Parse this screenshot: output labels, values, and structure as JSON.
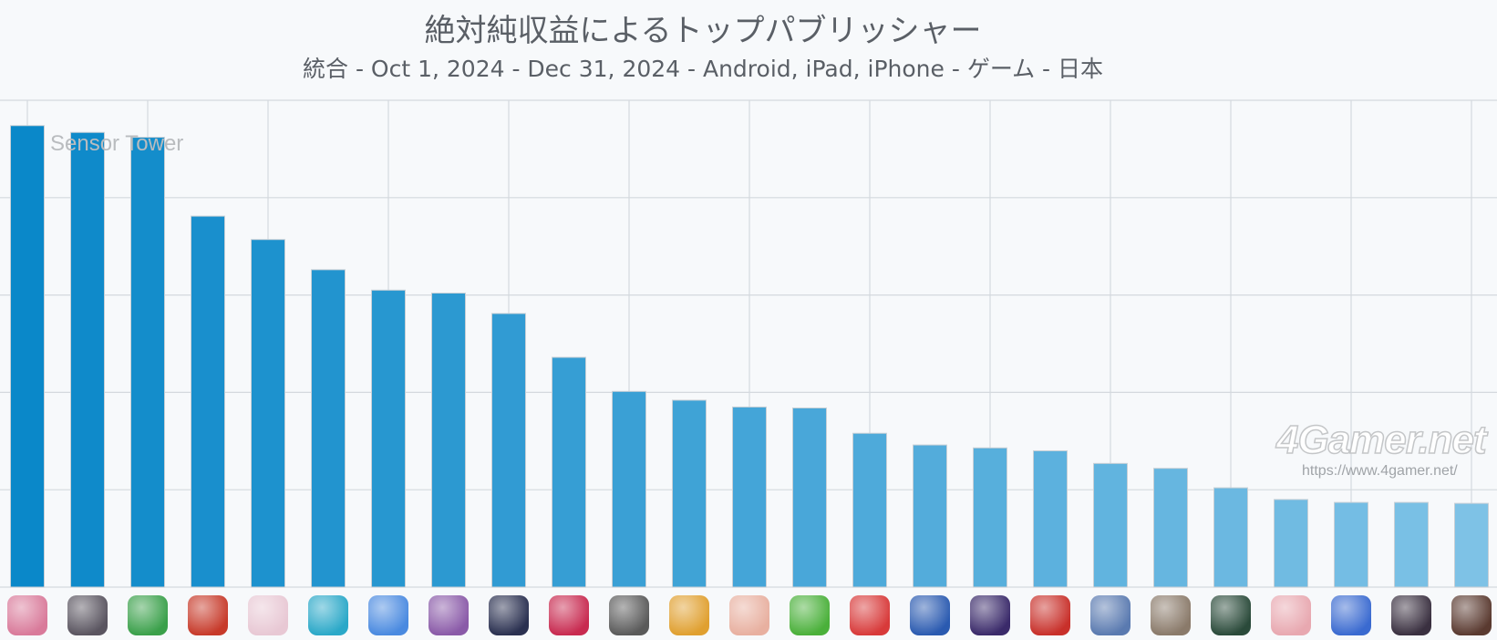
{
  "chart_data": {
    "type": "bar",
    "title": "絶対純収益によるトップパブリッシャー",
    "subtitle": "統合 - Oct 1, 2024 - Dec 31, 2024 - Android, iPad, iPhone - ゲーム - 日本",
    "categories": [
      "",
      "",
      "",
      "",
      "",
      "",
      "",
      "",
      "",
      "",
      "",
      "",
      "",
      "",
      "",
      "",
      "",
      "",
      "",
      "",
      "",
      "",
      "",
      "",
      ""
    ],
    "values": [
      4.74,
      4.67,
      4.62,
      3.81,
      3.57,
      3.26,
      3.05,
      3.02,
      2.81,
      2.36,
      2.01,
      1.92,
      1.85,
      1.84,
      1.58,
      1.46,
      1.43,
      1.4,
      1.27,
      1.22,
      1.02,
      0.9,
      0.87,
      0.87,
      0.86
    ],
    "ylim": [
      0,
      5
    ],
    "grid": true,
    "bar_color_start": "#0a88c9",
    "bar_color_end": "#7ec2e6",
    "icon_colors": [
      "#d97a9a",
      "#5a5560",
      "#3aa04a",
      "#c73a2a",
      "#e8c8d4",
      "#2aa8c8",
      "#4a8ae0",
      "#8a5aa8",
      "#2a3050",
      "#c82a50",
      "#5a5a5a",
      "#e0a030",
      "#e8b0a0",
      "#4ab03a",
      "#d83a3a",
      "#2a5ab0",
      "#3a2a6a",
      "#c8302a",
      "#5a7ab0",
      "#8a7a6a",
      "#2a4a3a",
      "#e8a8b0",
      "#3a6ad0",
      "#3a3040",
      "#5a3a30"
    ]
  },
  "watermarks": {
    "sensor_tower": "Sensor Tower",
    "fourgamer": "4Gamer.net",
    "fourgamer_url": "https://www.4gamer.net/"
  }
}
